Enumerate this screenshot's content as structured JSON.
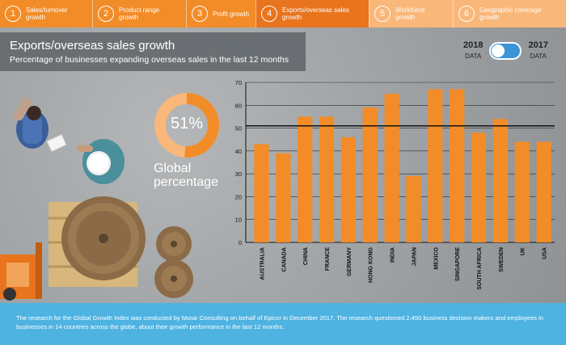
{
  "tabs": [
    {
      "num": "1",
      "label": "Sales/turnover growth"
    },
    {
      "num": "2",
      "label": "Product range growth"
    },
    {
      "num": "3",
      "label": "Profit growth"
    },
    {
      "num": "4",
      "label": "Exports/overseas sales growth"
    },
    {
      "num": "5",
      "label": "Workforce growth"
    },
    {
      "num": "6",
      "label": "Geographic coverage growth"
    }
  ],
  "header": {
    "title": "Exports/overseas sales growth",
    "subtitle": "Percentage of businesses expanding overseas sales in the last 12 months"
  },
  "toggle": {
    "left_year": "2018",
    "left_sub": "DATA",
    "right_year": "2017",
    "right_sub": "DATA",
    "accent": "#3b94d6"
  },
  "global": {
    "percent_text": "51%",
    "value": 51,
    "label_line1": "Global",
    "label_line2": "percentage"
  },
  "colors": {
    "orange": "#f28c28",
    "light_orange": "#f9b77a",
    "footer_blue": "#4fb3e2"
  },
  "chart_data": {
    "type": "bar",
    "categories": [
      "AUSTRALIA",
      "CANADA",
      "CHINA",
      "FRANCE",
      "GERMANY",
      "HONG KONG",
      "INDIA",
      "JAPAN",
      "MEXICO",
      "SINGAPORE",
      "SOUTH AFRICA",
      "SWEDEN",
      "UK",
      "USA"
    ],
    "values": [
      43,
      39,
      55,
      55,
      46,
      59,
      65,
      29,
      67,
      67,
      48,
      54,
      44,
      44
    ],
    "yticks": [
      "0",
      "10",
      "20",
      "30",
      "40",
      "50",
      "60",
      "70"
    ],
    "ylim": [
      0,
      70
    ],
    "reference_line": 51,
    "grid": true
  },
  "footer": {
    "text": "The research for the Global Growth Index was conducted by Morar Consulting on behalf of Epicor in December 2017. The research questioned 2,450 business decision makers and employees in businesses in 14 countries across the globe, about their growth performance in the last 12 months."
  }
}
